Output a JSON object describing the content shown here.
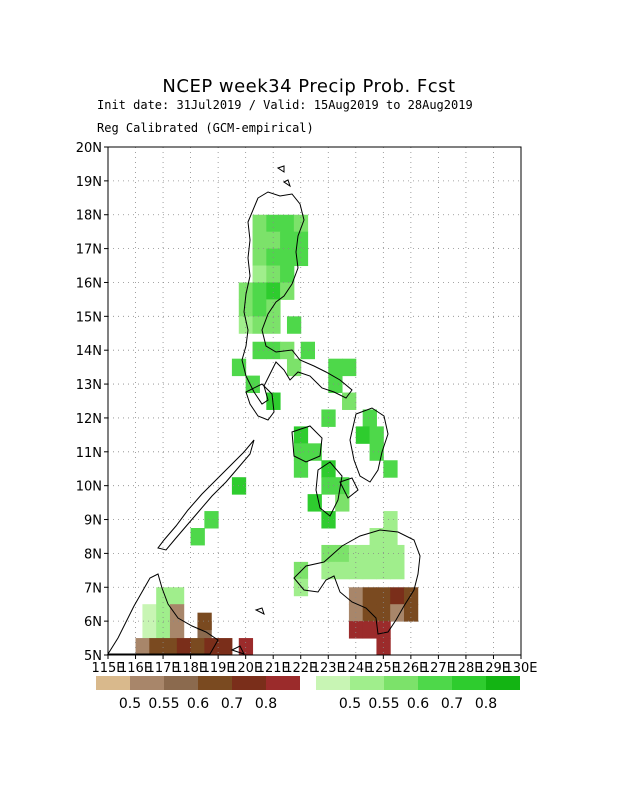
{
  "header": {
    "title": "NCEP week34 Precip Prob. Fcst",
    "init_line": "Init date: 31Jul2019 / Valid: 15Aug2019 to 28Aug2019",
    "calib_line": "Reg Calibrated (GCM-empirical)"
  },
  "axes": {
    "lon_labels": [
      "115E",
      "116E",
      "117E",
      "118E",
      "119E",
      "120E",
      "121E",
      "122E",
      "123E",
      "124E",
      "125E",
      "126E",
      "127E",
      "128E",
      "129E",
      "130E"
    ],
    "lat_labels": [
      "5N",
      "6N",
      "7N",
      "8N",
      "9N",
      "10N",
      "11N",
      "12N",
      "13N",
      "14N",
      "15N",
      "16N",
      "17N",
      "18N",
      "19N",
      "20N"
    ],
    "lon_range": [
      115,
      130
    ],
    "lat_range": [
      5,
      20
    ]
  },
  "colorbars": {
    "dry": {
      "colors": [
        "#d9b98c",
        "#a8866a",
        "#8b6a4e",
        "#7a4a20",
        "#7a2e1a",
        "#9b2b2b"
      ],
      "labels": [
        "0.5",
        "0.55",
        "0.6",
        "0.7",
        "0.8"
      ]
    },
    "wet": {
      "colors": [
        "#c8f5b4",
        "#a0ee8c",
        "#7ce26a",
        "#4ed84a",
        "#2ecc2e",
        "#13b413"
      ],
      "labels": [
        "0.5",
        "0.55",
        "0.6",
        "0.7",
        "0.8"
      ]
    }
  },
  "grid_cells": [
    {
      "lon": 120.5,
      "lat": 17.75,
      "level": "w2"
    },
    {
      "lon": 121.0,
      "lat": 17.75,
      "level": "w3"
    },
    {
      "lon": 121.5,
      "lat": 17.75,
      "level": "w3"
    },
    {
      "lon": 122.0,
      "lat": 17.75,
      "level": "w2"
    },
    {
      "lon": 120.5,
      "lat": 17.25,
      "level": "w2"
    },
    {
      "lon": 121.0,
      "lat": 17.25,
      "level": "w2"
    },
    {
      "lon": 121.5,
      "lat": 17.25,
      "level": "w3"
    },
    {
      "lon": 122.0,
      "lat": 17.25,
      "level": "w3"
    },
    {
      "lon": 120.5,
      "lat": 16.75,
      "level": "w2"
    },
    {
      "lon": 121.0,
      "lat": 16.75,
      "level": "w3"
    },
    {
      "lon": 121.5,
      "lat": 16.75,
      "level": "w3"
    },
    {
      "lon": 122.0,
      "lat": 16.75,
      "level": "w3"
    },
    {
      "lon": 120.5,
      "lat": 16.25,
      "level": "w1"
    },
    {
      "lon": 121.0,
      "lat": 16.25,
      "level": "w2"
    },
    {
      "lon": 121.5,
      "lat": 16.25,
      "level": "w3"
    },
    {
      "lon": 120.0,
      "lat": 15.75,
      "level": "w2"
    },
    {
      "lon": 120.5,
      "lat": 15.75,
      "level": "w3"
    },
    {
      "lon": 121.0,
      "lat": 15.75,
      "level": "w4"
    },
    {
      "lon": 121.5,
      "lat": 15.75,
      "level": "w2"
    },
    {
      "lon": 120.0,
      "lat": 15.25,
      "level": "w2"
    },
    {
      "lon": 120.5,
      "lat": 15.25,
      "level": "w3"
    },
    {
      "lon": 121.0,
      "lat": 15.25,
      "level": "w2"
    },
    {
      "lon": 120.0,
      "lat": 14.75,
      "level": "w1"
    },
    {
      "lon": 120.5,
      "lat": 14.75,
      "level": "w2"
    },
    {
      "lon": 121.0,
      "lat": 14.75,
      "level": "w2"
    },
    {
      "lon": 121.75,
      "lat": 14.75,
      "level": "w3"
    },
    {
      "lon": 120.5,
      "lat": 14.0,
      "level": "w3"
    },
    {
      "lon": 121.0,
      "lat": 14.0,
      "level": "w3"
    },
    {
      "lon": 121.5,
      "lat": 14.0,
      "level": "w2"
    },
    {
      "lon": 122.25,
      "lat": 14.0,
      "level": "w3"
    },
    {
      "lon": 119.75,
      "lat": 13.5,
      "level": "w3"
    },
    {
      "lon": 121.75,
      "lat": 13.5,
      "level": "w2"
    },
    {
      "lon": 123.25,
      "lat": 13.5,
      "level": "w3"
    },
    {
      "lon": 123.75,
      "lat": 13.5,
      "level": "w3"
    },
    {
      "lon": 120.25,
      "lat": 13.0,
      "level": "w3"
    },
    {
      "lon": 123.25,
      "lat": 13.0,
      "level": "w3"
    },
    {
      "lon": 121.0,
      "lat": 12.5,
      "level": "w4"
    },
    {
      "lon": 123.75,
      "lat": 12.5,
      "level": "w2"
    },
    {
      "lon": 123.0,
      "lat": 12.0,
      "level": "w3"
    },
    {
      "lon": 124.5,
      "lat": 12.0,
      "level": "w3"
    },
    {
      "lon": 122.0,
      "lat": 11.5,
      "level": "w4"
    },
    {
      "lon": 124.25,
      "lat": 11.5,
      "level": "w4"
    },
    {
      "lon": 124.75,
      "lat": 11.5,
      "level": "w3"
    },
    {
      "lon": 122.0,
      "lat": 11.0,
      "level": "w3"
    },
    {
      "lon": 122.5,
      "lat": 11.0,
      "level": "w3"
    },
    {
      "lon": 124.75,
      "lat": 11.0,
      "level": "w3"
    },
    {
      "lon": 122.0,
      "lat": 10.5,
      "level": "w3"
    },
    {
      "lon": 123.0,
      "lat": 10.5,
      "level": "w4"
    },
    {
      "lon": 125.25,
      "lat": 10.5,
      "level": "w3"
    },
    {
      "lon": 123.0,
      "lat": 10.0,
      "level": "w3"
    },
    {
      "lon": 123.5,
      "lat": 10.0,
      "level": "w3"
    },
    {
      "lon": 119.75,
      "lat": 10.0,
      "level": "w4"
    },
    {
      "lon": 122.5,
      "lat": 9.5,
      "level": "w4"
    },
    {
      "lon": 123.5,
      "lat": 9.5,
      "level": "w2"
    },
    {
      "lon": 118.75,
      "lat": 9.0,
      "level": "w3"
    },
    {
      "lon": 123.0,
      "lat": 9.0,
      "level": "w4"
    },
    {
      "lon": 125.25,
      "lat": 9.0,
      "level": "w1"
    },
    {
      "lon": 118.25,
      "lat": 8.5,
      "level": "w3"
    },
    {
      "lon": 124.75,
      "lat": 8.5,
      "level": "w1"
    },
    {
      "lon": 125.25,
      "lat": 8.5,
      "level": "w1"
    },
    {
      "lon": 123.0,
      "lat": 8.0,
      "level": "w2"
    },
    {
      "lon": 123.5,
      "lat": 8.0,
      "level": "w2"
    },
    {
      "lon": 124.0,
      "lat": 8.0,
      "level": "w1"
    },
    {
      "lon": 124.5,
      "lat": 8.0,
      "level": "w1"
    },
    {
      "lon": 125.0,
      "lat": 8.0,
      "level": "w1"
    },
    {
      "lon": 125.5,
      "lat": 8.0,
      "level": "w1"
    },
    {
      "lon": 123.0,
      "lat": 7.5,
      "level": "w1"
    },
    {
      "lon": 123.5,
      "lat": 7.5,
      "level": "w1"
    },
    {
      "lon": 124.0,
      "lat": 7.5,
      "level": "w1"
    },
    {
      "lon": 124.5,
      "lat": 7.5,
      "level": "w1"
    },
    {
      "lon": 125.0,
      "lat": 7.5,
      "level": "w1"
    },
    {
      "lon": 125.5,
      "lat": 7.5,
      "level": "w1"
    },
    {
      "lon": 122.0,
      "lat": 7.5,
      "level": "w2"
    },
    {
      "lon": 122.0,
      "lat": 7.0,
      "level": "w1"
    },
    {
      "lon": 117.0,
      "lat": 6.75,
      "level": "w1"
    },
    {
      "lon": 117.5,
      "lat": 6.75,
      "level": "w1"
    },
    {
      "lon": 116.5,
      "lat": 6.25,
      "level": "w0"
    },
    {
      "lon": 117.0,
      "lat": 6.25,
      "level": "w1"
    },
    {
      "lon": 117.5,
      "lat": 6.25,
      "level": "d1"
    },
    {
      "lon": 116.5,
      "lat": 5.75,
      "level": "w0"
    },
    {
      "lon": 117.0,
      "lat": 5.75,
      "level": "w1"
    },
    {
      "lon": 117.5,
      "lat": 5.75,
      "level": "d1"
    },
    {
      "lon": 118.5,
      "lat": 5.75,
      "level": "d2"
    },
    {
      "lon": 118.5,
      "lat": 6.0,
      "level": "d3"
    },
    {
      "lon": 116.25,
      "lat": 5.25,
      "level": "d1"
    },
    {
      "lon": 116.75,
      "lat": 5.25,
      "level": "d3"
    },
    {
      "lon": 117.25,
      "lat": 5.25,
      "level": "d3"
    },
    {
      "lon": 117.75,
      "lat": 5.25,
      "level": "d4"
    },
    {
      "lon": 118.25,
      "lat": 5.25,
      "level": "d3"
    },
    {
      "lon": 118.75,
      "lat": 5.25,
      "level": "d4"
    },
    {
      "lon": 119.25,
      "lat": 5.25,
      "level": "d4"
    },
    {
      "lon": 120.0,
      "lat": 5.25,
      "level": "d5"
    },
    {
      "lon": 124.0,
      "lat": 6.75,
      "level": "d1"
    },
    {
      "lon": 124.5,
      "lat": 6.75,
      "level": "d3"
    },
    {
      "lon": 125.0,
      "lat": 6.75,
      "level": "d3"
    },
    {
      "lon": 125.5,
      "lat": 6.75,
      "level": "d4"
    },
    {
      "lon": 126.0,
      "lat": 6.75,
      "level": "d3"
    },
    {
      "lon": 124.0,
      "lat": 6.25,
      "level": "d1"
    },
    {
      "lon": 124.5,
      "lat": 6.25,
      "level": "d3"
    },
    {
      "lon": 125.0,
      "lat": 6.25,
      "level": "d3"
    },
    {
      "lon": 125.5,
      "lat": 6.25,
      "level": "d1"
    },
    {
      "lon": 126.0,
      "lat": 6.25,
      "level": "d3"
    },
    {
      "lon": 124.0,
      "lat": 5.75,
      "level": "d5"
    },
    {
      "lon": 124.5,
      "lat": 5.75,
      "level": "d5"
    },
    {
      "lon": 125.0,
      "lat": 5.75,
      "level": "d5"
    },
    {
      "lon": 125.0,
      "lat": 5.25,
      "level": "d5"
    }
  ]
}
